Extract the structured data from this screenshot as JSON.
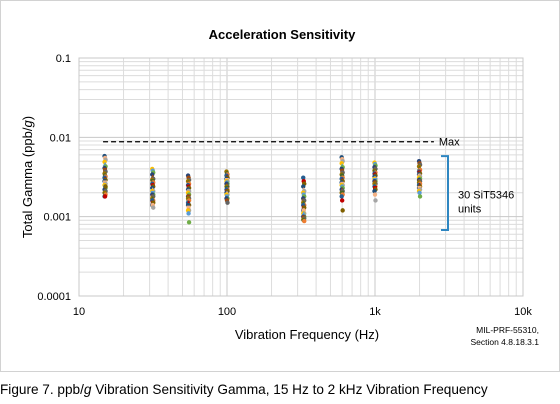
{
  "chart_data": {
    "type": "scatter",
    "title": "Acceleration Sensitivity",
    "xlabel": "Vibration Frequency (Hz)",
    "ylabel_parts": [
      "Total Gamma (ppb/",
      "g",
      ")"
    ],
    "x_scale": "log",
    "y_scale": "log",
    "xlim": [
      10,
      10000
    ],
    "ylim": [
      0.0001,
      0.1
    ],
    "x_ticks": [
      "10",
      "100",
      "1k",
      "10k"
    ],
    "y_ticks": [
      "0.1",
      "0.01",
      "0.001",
      "0.0001"
    ],
    "grid": true,
    "max_line": {
      "value": 0.0088,
      "x_range": [
        15,
        2500
      ],
      "label": "Max"
    },
    "bracket_label": [
      "30 SiT5346",
      "units"
    ],
    "note": [
      "MIL-PRF-55310,",
      "Section 4.8.18.3.1"
    ],
    "colors": [
      "#1f4e79",
      "#f4b183",
      "#a5a5a5",
      "#ffc000",
      "#5b9bd5",
      "#70ad47",
      "#264478",
      "#9e480e",
      "#636363",
      "#997300",
      "#43682b",
      "#ed7d31",
      "#255e91",
      "#c00000",
      "#7f6000"
    ],
    "series": [
      {
        "x": 15,
        "values": [
          0.0058,
          0.0055,
          0.0052,
          0.0049,
          0.0046,
          0.0043,
          0.0041,
          0.0039,
          0.0037,
          0.0035,
          0.0033,
          0.0032,
          0.0031,
          0.003,
          0.0029,
          0.0028,
          0.0027,
          0.0026,
          0.0025,
          0.0024,
          0.0023,
          0.0022,
          0.0021,
          0.0021,
          0.002,
          0.0019,
          0.0019,
          0.0018,
          0.0018,
          0.0024
        ]
      },
      {
        "x": 31.5,
        "values": [
          0.004,
          0.0038,
          0.0036,
          0.0034,
          0.0032,
          0.003,
          0.0029,
          0.0028,
          0.0027,
          0.0026,
          0.0025,
          0.0024,
          0.0023,
          0.0022,
          0.0021,
          0.0021,
          0.002,
          0.0019,
          0.0019,
          0.0018,
          0.0018,
          0.0017,
          0.0017,
          0.0016,
          0.0016,
          0.0015,
          0.0015,
          0.0014,
          0.0014,
          0.0013
        ]
      },
      {
        "x": 55,
        "values": [
          0.0033,
          0.0031,
          0.0029,
          0.0028,
          0.0027,
          0.0026,
          0.0025,
          0.0024,
          0.0023,
          0.0022,
          0.0021,
          0.0021,
          0.002,
          0.0019,
          0.0019,
          0.0018,
          0.0018,
          0.0017,
          0.0017,
          0.0016,
          0.0016,
          0.0015,
          0.0015,
          0.0014,
          0.0014,
          0.0013,
          0.0012,
          0.0012,
          0.0011,
          0.00085
        ]
      },
      {
        "x": 100,
        "values": [
          0.0037,
          0.0035,
          0.0034,
          0.0033,
          0.0032,
          0.0031,
          0.003,
          0.0029,
          0.0028,
          0.0028,
          0.0027,
          0.0026,
          0.0026,
          0.0025,
          0.0024,
          0.0024,
          0.0023,
          0.0022,
          0.0022,
          0.0021,
          0.0021,
          0.002,
          0.002,
          0.0019,
          0.0019,
          0.0018,
          0.0017,
          0.0017,
          0.0016,
          0.0015
        ]
      },
      {
        "x": 330,
        "values": [
          0.0031,
          0.0028,
          0.0026,
          0.0024,
          0.0022,
          0.0021,
          0.002,
          0.0019,
          0.0018,
          0.0017,
          0.0016,
          0.0016,
          0.0015,
          0.0015,
          0.0014,
          0.0014,
          0.0013,
          0.0013,
          0.0012,
          0.0012,
          0.0011,
          0.0011,
          0.0011,
          0.001,
          0.001,
          0.00098,
          0.00095,
          0.00092,
          0.0009,
          0.00088
        ]
      },
      {
        "x": 600,
        "values": [
          0.0056,
          0.0053,
          0.005,
          0.0047,
          0.0044,
          0.0042,
          0.004,
          0.0038,
          0.0036,
          0.0034,
          0.0033,
          0.0031,
          0.003,
          0.0029,
          0.0028,
          0.0027,
          0.0026,
          0.0025,
          0.0025,
          0.0024,
          0.0023,
          0.0022,
          0.0022,
          0.0021,
          0.002,
          0.002,
          0.0019,
          0.0018,
          0.0016,
          0.0012
        ]
      },
      {
        "x": 1000,
        "values": [
          0.0048,
          0.0046,
          0.0044,
          0.0042,
          0.0041,
          0.004,
          0.0038,
          0.0037,
          0.0036,
          0.0035,
          0.0034,
          0.0033,
          0.0032,
          0.0031,
          0.003,
          0.003,
          0.0029,
          0.0028,
          0.0028,
          0.0027,
          0.0026,
          0.0026,
          0.0025,
          0.0024,
          0.0024,
          0.0023,
          0.0022,
          0.0021,
          0.0019,
          0.0016
        ]
      },
      {
        "x": 2000,
        "values": [
          0.005,
          0.0047,
          0.0045,
          0.0043,
          0.0041,
          0.0039,
          0.0037,
          0.0036,
          0.0035,
          0.0034,
          0.0033,
          0.0032,
          0.0031,
          0.003,
          0.003,
          0.0029,
          0.0028,
          0.0028,
          0.0027,
          0.0026,
          0.0026,
          0.0025,
          0.0025,
          0.0024,
          0.0023,
          0.0023,
          0.0022,
          0.0021,
          0.002,
          0.0018
        ]
      }
    ]
  },
  "caption": {
    "prefix": "Figure 7. ppb/",
    "italic": "g",
    "suffix": " Vibration Sensitivity Gamma, 15 Hz to 2 kHz Vibration Frequency"
  }
}
